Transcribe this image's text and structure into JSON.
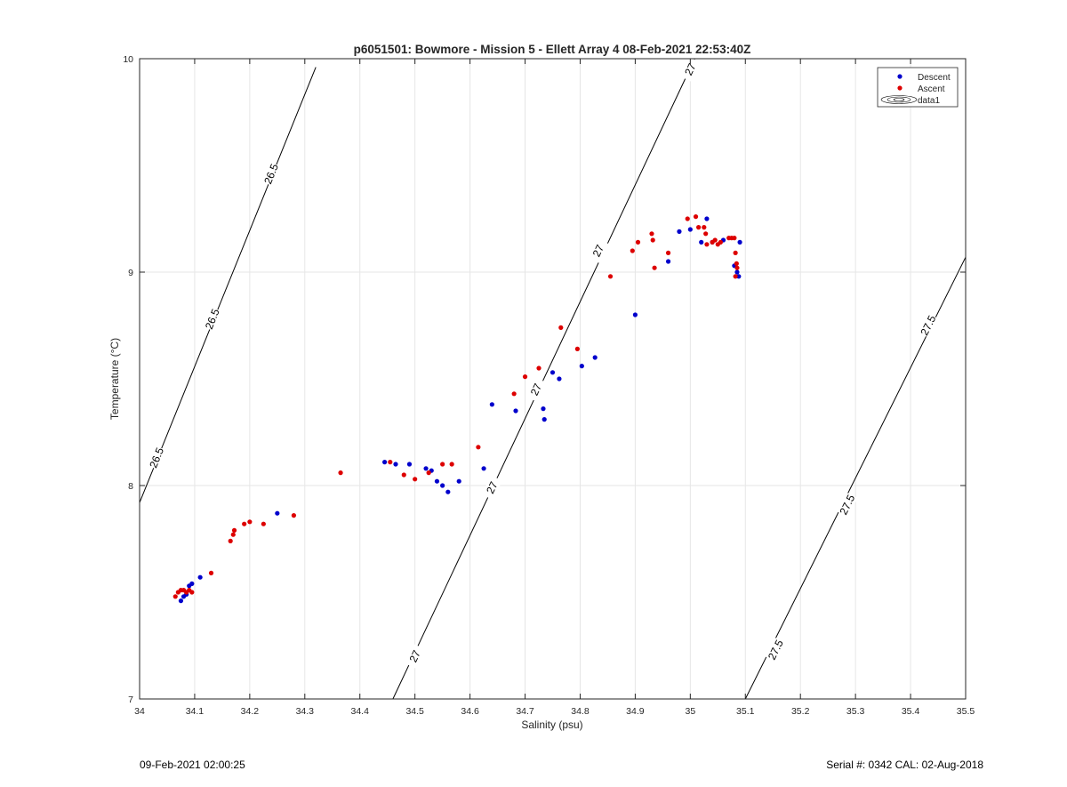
{
  "chart_data": {
    "type": "scatter",
    "title": "p6051501: Bowmore - Mission 5 - Ellett Array 4 08-Feb-2021 22:53:40Z",
    "xlabel": "Salinity (psu)",
    "ylabel": "Temperature (°C)",
    "xlim": [
      34,
      35.5
    ],
    "ylim": [
      7,
      10
    ],
    "xticks": [
      "34",
      "34.1",
      "34.2",
      "34.3",
      "34.4",
      "34.5",
      "34.6",
      "34.7",
      "34.8",
      "34.9",
      "35",
      "35.1",
      "35.2",
      "35.3",
      "35.4",
      "35.5"
    ],
    "yticks": [
      "7",
      "8",
      "9",
      "10"
    ],
    "grid": true,
    "legend_position": "top-right",
    "legend": [
      {
        "label": "Descent",
        "marker": "dot",
        "color": "#0000cc"
      },
      {
        "label": "Ascent",
        "marker": "dot",
        "color": "#dd0000"
      },
      {
        "label": "data1",
        "marker": "contour"
      }
    ],
    "series": [
      {
        "name": "Descent",
        "color": "#0000cc",
        "points": [
          [
            34.075,
            7.46
          ],
          [
            34.08,
            7.48
          ],
          [
            34.085,
            7.49
          ],
          [
            34.09,
            7.53
          ],
          [
            34.095,
            7.54
          ],
          [
            34.11,
            7.57
          ],
          [
            34.25,
            7.87
          ],
          [
            34.445,
            8.11
          ],
          [
            34.465,
            8.1
          ],
          [
            34.49,
            8.1
          ],
          [
            34.52,
            8.08
          ],
          [
            34.53,
            8.07
          ],
          [
            34.54,
            8.02
          ],
          [
            34.55,
            8.0
          ],
          [
            34.56,
            7.97
          ],
          [
            34.58,
            8.02
          ],
          [
            34.625,
            8.08
          ],
          [
            34.64,
            8.38
          ],
          [
            34.683,
            8.35
          ],
          [
            34.733,
            8.36
          ],
          [
            34.735,
            8.31
          ],
          [
            34.75,
            8.53
          ],
          [
            34.762,
            8.5
          ],
          [
            34.803,
            8.56
          ],
          [
            34.827,
            8.6
          ],
          [
            34.9,
            8.8
          ],
          [
            34.96,
            9.05
          ],
          [
            34.98,
            9.19
          ],
          [
            35.0,
            9.2
          ],
          [
            35.03,
            9.25
          ],
          [
            35.02,
            9.14
          ],
          [
            35.04,
            9.14
          ],
          [
            35.06,
            9.15
          ],
          [
            35.08,
            9.03
          ],
          [
            35.085,
            9.0
          ],
          [
            35.088,
            8.98
          ],
          [
            35.09,
            9.14
          ]
        ]
      },
      {
        "name": "Ascent",
        "color": "#dd0000",
        "points": [
          [
            34.065,
            7.48
          ],
          [
            34.07,
            7.5
          ],
          [
            34.075,
            7.51
          ],
          [
            34.08,
            7.51
          ],
          [
            34.085,
            7.5
          ],
          [
            34.09,
            7.51
          ],
          [
            34.095,
            7.5
          ],
          [
            34.13,
            7.59
          ],
          [
            34.165,
            7.74
          ],
          [
            34.17,
            7.77
          ],
          [
            34.172,
            7.79
          ],
          [
            34.19,
            7.82
          ],
          [
            34.2,
            7.83
          ],
          [
            34.225,
            7.82
          ],
          [
            34.28,
            7.86
          ],
          [
            34.365,
            8.06
          ],
          [
            34.455,
            8.11
          ],
          [
            34.48,
            8.05
          ],
          [
            34.5,
            8.03
          ],
          [
            34.525,
            8.06
          ],
          [
            34.55,
            8.1
          ],
          [
            34.567,
            8.1
          ],
          [
            34.615,
            8.18
          ],
          [
            34.68,
            8.43
          ],
          [
            34.7,
            8.51
          ],
          [
            34.725,
            8.55
          ],
          [
            34.765,
            8.74
          ],
          [
            34.795,
            8.64
          ],
          [
            34.855,
            8.98
          ],
          [
            34.895,
            9.1
          ],
          [
            34.905,
            9.14
          ],
          [
            34.93,
            9.18
          ],
          [
            34.932,
            9.15
          ],
          [
            34.935,
            9.02
          ],
          [
            34.96,
            9.09
          ],
          [
            34.995,
            9.25
          ],
          [
            35.01,
            9.26
          ],
          [
            35.015,
            9.21
          ],
          [
            35.025,
            9.21
          ],
          [
            35.028,
            9.18
          ],
          [
            35.03,
            9.13
          ],
          [
            35.04,
            9.14
          ],
          [
            35.045,
            9.15
          ],
          [
            35.05,
            9.13
          ],
          [
            35.055,
            9.14
          ],
          [
            35.07,
            9.16
          ],
          [
            35.075,
            9.16
          ],
          [
            35.08,
            9.16
          ],
          [
            35.082,
            9.09
          ],
          [
            35.084,
            9.04
          ],
          [
            35.085,
            9.02
          ],
          [
            35.082,
            8.98
          ]
        ]
      }
    ],
    "contours": [
      {
        "level": "26.5",
        "points": [
          [
            34.0,
            7.92
          ],
          [
            34.32,
            9.96
          ]
        ],
        "labels": [
          [
            34.031,
            8.13
          ],
          [
            34.132,
            8.78
          ],
          [
            34.239,
            9.46
          ]
        ]
      },
      {
        "level": "27",
        "points": [
          [
            34.46,
            7.0
          ],
          [
            35.008,
            10.0
          ]
        ],
        "labels": [
          [
            34.5,
            7.2
          ],
          [
            34.64,
            7.99
          ],
          [
            34.72,
            8.45
          ],
          [
            34.833,
            9.1
          ],
          [
            35.0,
            9.95
          ]
        ]
      },
      {
        "level": "27.5",
        "points": [
          [
            35.1,
            7.0
          ],
          [
            35.5,
            9.07
          ]
        ],
        "labels": [
          [
            35.155,
            7.23
          ],
          [
            35.285,
            7.91
          ],
          [
            35.432,
            8.75
          ]
        ]
      }
    ]
  },
  "footer": {
    "left": "09-Feb-2021 02:00:25",
    "right": "Serial #: 0342  CAL: 02-Aug-2018"
  }
}
